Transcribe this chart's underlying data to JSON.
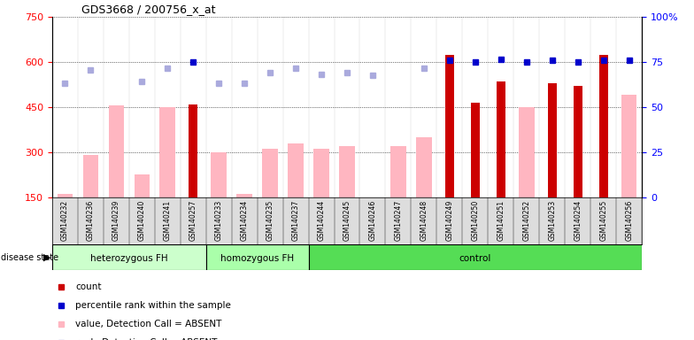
{
  "title": "GDS3668 / 200756_x_at",
  "samples": [
    "GSM140232",
    "GSM140236",
    "GSM140239",
    "GSM140240",
    "GSM140241",
    "GSM140257",
    "GSM140233",
    "GSM140234",
    "GSM140235",
    "GSM140237",
    "GSM140244",
    "GSM140245",
    "GSM140246",
    "GSM140247",
    "GSM140248",
    "GSM140249",
    "GSM140250",
    "GSM140251",
    "GSM140252",
    "GSM140253",
    "GSM140254",
    "GSM140255",
    "GSM140256"
  ],
  "count_values": [
    null,
    null,
    null,
    null,
    null,
    460,
    null,
    null,
    null,
    null,
    null,
    null,
    null,
    null,
    null,
    625,
    465,
    535,
    null,
    530,
    520,
    625,
    null
  ],
  "absent_values": [
    160,
    290,
    455,
    225,
    450,
    null,
    300,
    160,
    310,
    330,
    310,
    320,
    null,
    320,
    350,
    null,
    null,
    null,
    450,
    null,
    null,
    null,
    490
  ],
  "rank_absent_vals": [
    530,
    575,
    null,
    535,
    580,
    null,
    530,
    530,
    565,
    580,
    560,
    565,
    555,
    null,
    580,
    null,
    null,
    null,
    null,
    null,
    null,
    null,
    null
  ],
  "rank_present_vals": [
    null,
    null,
    null,
    null,
    null,
    600,
    null,
    null,
    null,
    null,
    null,
    null,
    null,
    null,
    null,
    605,
    600,
    610,
    600,
    605,
    600,
    607,
    607
  ],
  "disease_groups": [
    {
      "label": "heterozygous FH",
      "start": 0,
      "end": 6,
      "color": "#CCFFCC"
    },
    {
      "label": "homozygous FH",
      "start": 6,
      "end": 10,
      "color": "#AAFFAA"
    },
    {
      "label": "control",
      "start": 10,
      "end": 23,
      "color": "#55DD55"
    }
  ],
  "ylim_left": [
    150,
    750
  ],
  "ylim_right": [
    0,
    100
  ],
  "yticks_left": [
    150,
    300,
    450,
    600,
    750
  ],
  "yticks_right": [
    0,
    25,
    50,
    75,
    100
  ],
  "count_color": "#CC0000",
  "absent_bar_color": "#FFB6C1",
  "rank_absent_color": "#AAAADD",
  "rank_present_color": "#0000CC",
  "absent_bar_width": 0.6,
  "count_bar_width": 0.35
}
